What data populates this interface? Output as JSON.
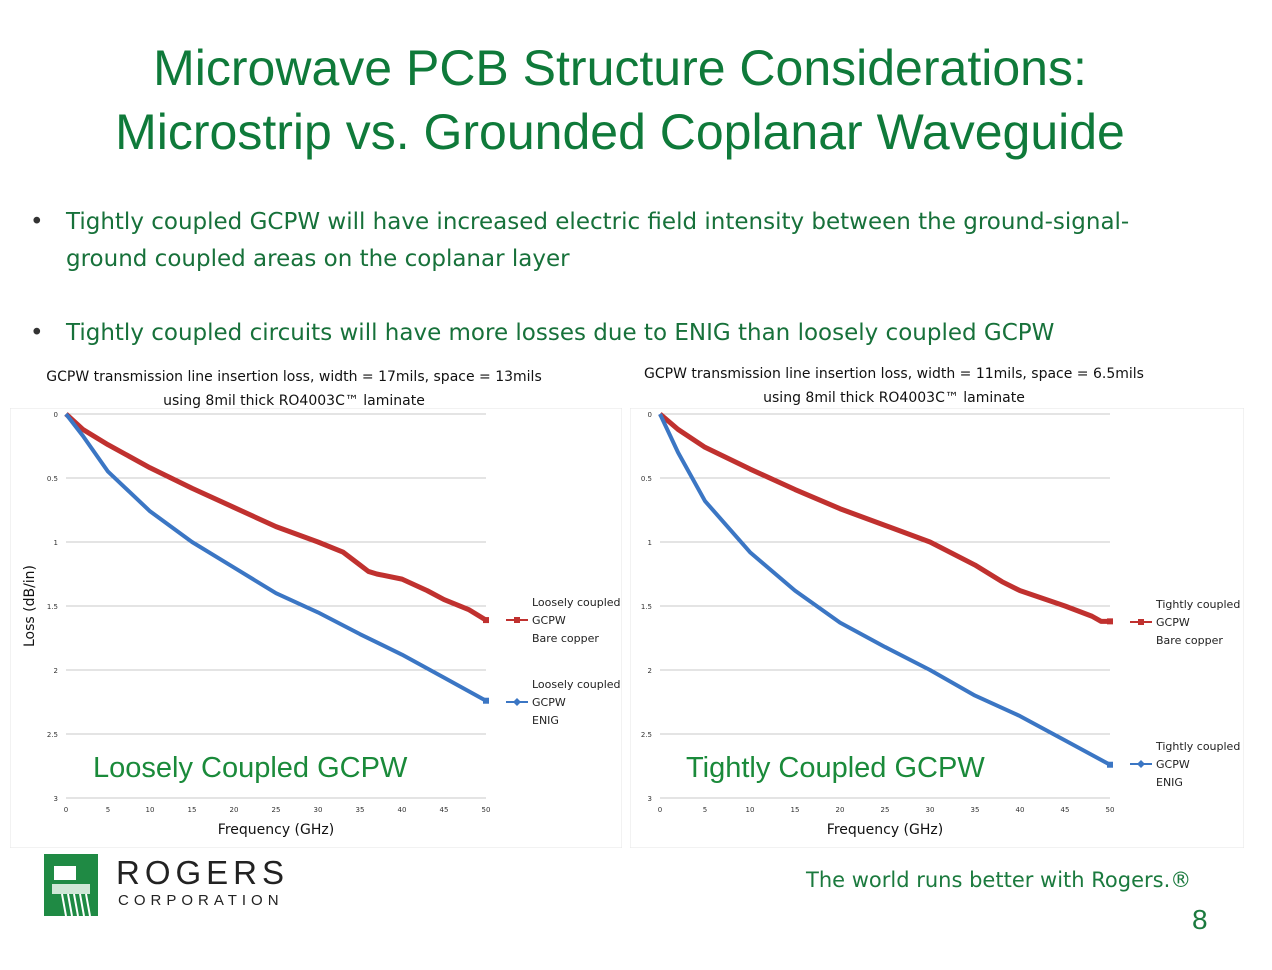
{
  "title": {
    "line1": "Microwave PCB Structure Considerations:",
    "line2": "Microstrip vs. Grounded Coplanar Waveguide"
  },
  "bullets": [
    {
      "text": "Tightly coupled GCPW will have increased electric field intensity between the ground-signal-ground coupled areas on the coplanar layer"
    },
    {
      "text": "Tightly coupled circuits will have more losses due to ENIG than loosely coupled GCPW"
    }
  ],
  "bullet_symbol": "•",
  "chart_data": [
    {
      "type": "line",
      "title_line1": "GCPW transmission line insertion loss, width = 17mils, space = 13mils",
      "title_line2": "using 8mil thick RO4003C™ laminate",
      "xlabel": "Frequency (GHz)",
      "ylabel": "Loss (dB/in)",
      "xlim": [
        0,
        50
      ],
      "ylim": [
        0,
        3
      ],
      "y_inverted": true,
      "grid": true,
      "legend": "right",
      "x_ticks": [
        "0",
        "5",
        "10",
        "15",
        "20",
        "25",
        "30",
        "35",
        "40",
        "45",
        "50"
      ],
      "y_ticks": [
        "0",
        "0.5",
        "1",
        "1.5",
        "2",
        "2.5",
        "3"
      ],
      "overlay_label": "Loosely Coupled GCPW",
      "series": [
        {
          "name": [
            "Loosely coupled",
            "GCPW",
            "Bare copper"
          ],
          "color": "#c0312f",
          "x": [
            0,
            2,
            5,
            10,
            15,
            20,
            25,
            30,
            33,
            35,
            36,
            37,
            40,
            43,
            45,
            48,
            50
          ],
          "y": [
            0,
            0.12,
            0.24,
            0.42,
            0.58,
            0.73,
            0.88,
            1.0,
            1.08,
            1.18,
            1.23,
            1.25,
            1.29,
            1.38,
            1.45,
            1.53,
            1.61
          ]
        },
        {
          "name": [
            "Loosely coupled",
            "GCPW",
            "ENIG"
          ],
          "color": "#3b76c4",
          "x": [
            0,
            2,
            5,
            10,
            15,
            20,
            25,
            30,
            35,
            40,
            45,
            50
          ],
          "y": [
            0,
            0.17,
            0.45,
            0.76,
            1.0,
            1.2,
            1.4,
            1.55,
            1.72,
            1.88,
            2.06,
            2.24
          ]
        }
      ]
    },
    {
      "type": "line",
      "title_line1": "GCPW transmission line insertion loss, width = 11mils, space = 6.5mils",
      "title_line2": "using 8mil thick RO4003C™ laminate",
      "xlabel": "Frequency (GHz)",
      "ylabel": "",
      "xlim": [
        0,
        50
      ],
      "ylim": [
        0,
        3
      ],
      "y_inverted": true,
      "grid": true,
      "legend": "right",
      "x_ticks": [
        "0",
        "5",
        "10",
        "15",
        "20",
        "25",
        "30",
        "35",
        "40",
        "45",
        "50"
      ],
      "y_ticks": [
        "0",
        "0.5",
        "1",
        "1.5",
        "2",
        "2.5",
        "3"
      ],
      "overlay_label": "Tightly Coupled GCPW",
      "series": [
        {
          "name": [
            "Tightly coupled",
            "GCPW",
            "Bare copper"
          ],
          "color": "#c0312f",
          "x": [
            0,
            2,
            5,
            10,
            15,
            20,
            25,
            30,
            35,
            38,
            40,
            45,
            48,
            49,
            50
          ],
          "y": [
            0,
            0.12,
            0.26,
            0.43,
            0.59,
            0.74,
            0.87,
            1.0,
            1.18,
            1.31,
            1.38,
            1.5,
            1.58,
            1.62,
            1.62
          ]
        },
        {
          "name": [
            "Tightly coupled",
            "GCPW",
            "ENIG"
          ],
          "color": "#3b76c4",
          "x": [
            0,
            2,
            5,
            10,
            15,
            20,
            25,
            30,
            35,
            40,
            45,
            50
          ],
          "y": [
            0,
            0.3,
            0.68,
            1.08,
            1.38,
            1.63,
            1.82,
            2.0,
            2.2,
            2.36,
            2.55,
            2.74
          ]
        }
      ]
    }
  ],
  "logo": {
    "word1": "ROGERS",
    "word2": "CORPORATION",
    "colors": {
      "green": "#1f8a44",
      "dark": "#2b2b2b"
    }
  },
  "tagline": "The world runs better with Rogers.®",
  "page_number": "8",
  "colors": {
    "title_green": "#0f7a3a",
    "text_green": "#17713a",
    "overlay_green": "#1a8a3a"
  }
}
